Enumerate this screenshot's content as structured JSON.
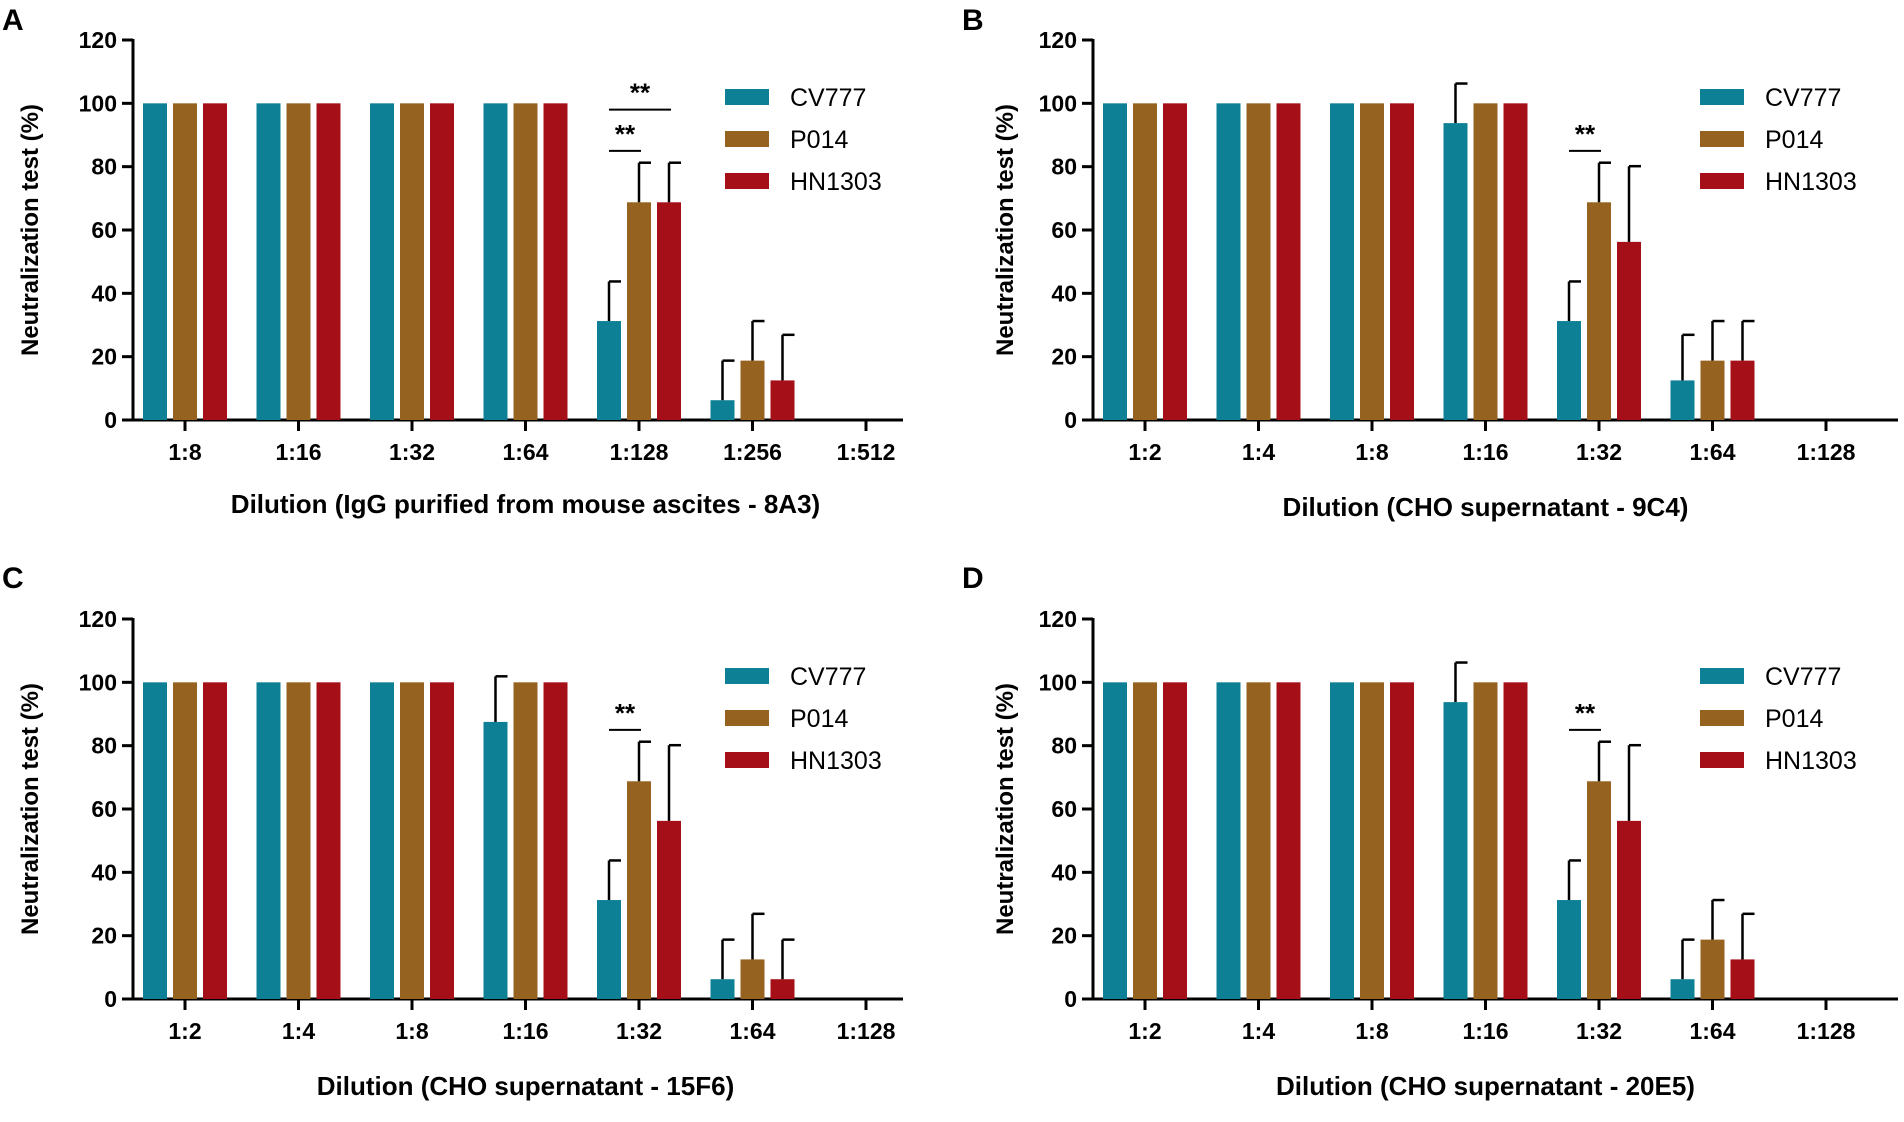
{
  "colors": {
    "CV777": "#0E8096",
    "P014": "#956220",
    "HN1303": "#A50F17"
  },
  "chart_data": [
    {
      "panel": "A",
      "type": "bar",
      "categories": [
        "1:8",
        "1:16",
        "1:32",
        "1:64",
        "1:128",
        "1:256",
        "1:512"
      ],
      "series": [
        {
          "name": "CV777",
          "values": [
            100,
            100,
            100,
            100,
            31.25,
            6.25,
            0
          ],
          "errors": [
            0,
            0,
            0,
            0,
            12.5,
            12.5,
            0
          ]
        },
        {
          "name": "P014",
          "values": [
            100,
            100,
            100,
            100,
            68.75,
            18.75,
            0
          ],
          "errors": [
            0,
            0,
            0,
            0,
            12.5,
            12.5,
            0
          ]
        },
        {
          "name": "HN1303",
          "values": [
            100,
            100,
            100,
            100,
            68.75,
            12.5,
            0
          ],
          "errors": [
            0,
            0,
            0,
            0,
            12.5,
            14.4,
            0
          ]
        }
      ],
      "significance": [
        {
          "category": "1:128",
          "from": "CV777",
          "to": "HN1303",
          "label": "**"
        },
        {
          "category": "1:128",
          "from": "CV777",
          "to": "P014",
          "label": "**"
        }
      ],
      "title": "",
      "xlabel": "Dilution (IgG purified from mouse ascites - 8A3)",
      "ylabel": "Neutralization test (%)",
      "ylim": [
        0,
        120
      ],
      "yticks": [
        "0",
        "20",
        "40",
        "60",
        "80",
        "100",
        "120"
      ],
      "legend": "top-right"
    },
    {
      "panel": "B",
      "type": "bar",
      "categories": [
        "1:2",
        "1:4",
        "1:8",
        "1:16",
        "1:32",
        "1:64",
        "1:128"
      ],
      "series": [
        {
          "name": "CV777",
          "values": [
            100,
            100,
            100,
            93.75,
            31.25,
            12.5,
            0
          ],
          "errors": [
            0,
            0,
            0,
            12.5,
            12.5,
            14.4,
            0
          ]
        },
        {
          "name": "P014",
          "values": [
            100,
            100,
            100,
            100,
            68.75,
            18.75,
            0
          ],
          "errors": [
            0,
            0,
            0,
            0,
            12.5,
            12.5,
            0
          ]
        },
        {
          "name": "HN1303",
          "values": [
            100,
            100,
            100,
            100,
            56.25,
            18.75,
            0
          ],
          "errors": [
            0,
            0,
            0,
            0,
            23.9,
            12.5,
            0
          ]
        }
      ],
      "significance": [
        {
          "category": "1:32",
          "from": "CV777",
          "to": "P014",
          "label": "**"
        }
      ],
      "title": "",
      "xlabel": "Dilution (CHO supernatant - 9C4)",
      "ylabel": "Neutralization test (%)",
      "ylim": [
        0,
        120
      ],
      "yticks": [
        "0",
        "20",
        "40",
        "60",
        "80",
        "100",
        "120"
      ],
      "legend": "top-right"
    },
    {
      "panel": "C",
      "type": "bar",
      "categories": [
        "1:2",
        "1:4",
        "1:8",
        "1:16",
        "1:32",
        "1:64",
        "1:128"
      ],
      "series": [
        {
          "name": "CV777",
          "values": [
            100,
            100,
            100,
            87.5,
            31.25,
            6.25,
            0
          ],
          "errors": [
            0,
            0,
            0,
            14.4,
            12.5,
            12.5,
            0
          ]
        },
        {
          "name": "P014",
          "values": [
            100,
            100,
            100,
            100,
            68.75,
            12.5,
            0
          ],
          "errors": [
            0,
            0,
            0,
            0,
            12.5,
            14.4,
            0
          ]
        },
        {
          "name": "HN1303",
          "values": [
            100,
            100,
            100,
            100,
            56.25,
            6.25,
            0
          ],
          "errors": [
            0,
            0,
            0,
            0,
            23.9,
            12.5,
            0
          ]
        }
      ],
      "significance": [
        {
          "category": "1:32",
          "from": "CV777",
          "to": "P014",
          "label": "**"
        }
      ],
      "title": "",
      "xlabel": "Dilution (CHO supernatant - 15F6)",
      "ylabel": "Neutralization test (%)",
      "ylim": [
        0,
        120
      ],
      "yticks": [
        "0",
        "20",
        "40",
        "60",
        "80",
        "100",
        "120"
      ],
      "legend": "top-right"
    },
    {
      "panel": "D",
      "type": "bar",
      "categories": [
        "1:2",
        "1:4",
        "1:8",
        "1:16",
        "1:32",
        "1:64",
        "1:128"
      ],
      "series": [
        {
          "name": "CV777",
          "values": [
            100,
            100,
            100,
            93.75,
            31.25,
            6.25,
            0
          ],
          "errors": [
            0,
            0,
            0,
            12.5,
            12.5,
            12.5,
            0
          ]
        },
        {
          "name": "P014",
          "values": [
            100,
            100,
            100,
            100,
            68.75,
            18.75,
            0
          ],
          "errors": [
            0,
            0,
            0,
            0,
            12.5,
            12.5,
            0
          ]
        },
        {
          "name": "HN1303",
          "values": [
            100,
            100,
            100,
            100,
            56.25,
            12.5,
            0
          ],
          "errors": [
            0,
            0,
            0,
            0,
            23.9,
            14.4,
            0
          ]
        }
      ],
      "significance": [
        {
          "category": "1:32",
          "from": "CV777",
          "to": "P014",
          "label": "**"
        }
      ],
      "title": "",
      "xlabel": "Dilution (CHO supernatant - 20E5)",
      "ylabel": "Neutralization test (%)",
      "ylim": [
        0,
        120
      ],
      "yticks": [
        "0",
        "20",
        "40",
        "60",
        "80",
        "100",
        "120"
      ],
      "legend": "top-right"
    }
  ]
}
